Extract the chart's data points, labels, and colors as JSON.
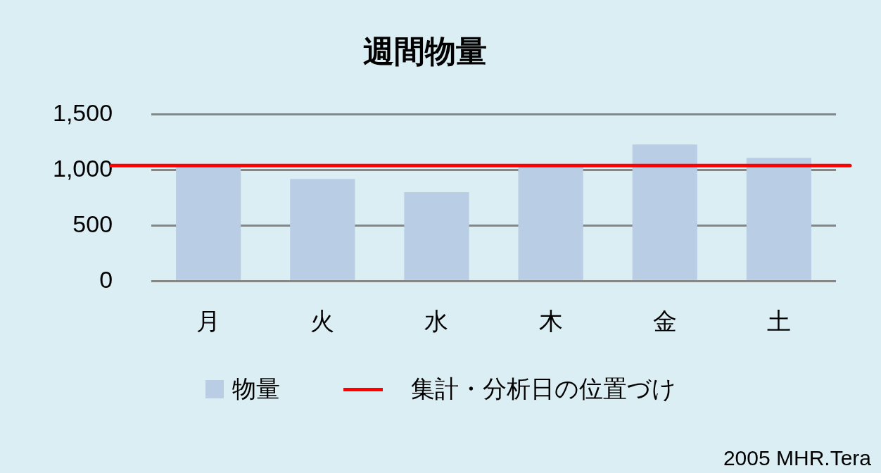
{
  "chart_data": {
    "type": "bar",
    "title": "週間物量",
    "categories": [
      "月",
      "火",
      "水",
      "木",
      "金",
      "土"
    ],
    "series": [
      {
        "name": "物量",
        "color": "#b9cde4",
        "values": [
          1040,
          920,
          800,
          1040,
          1230,
          1110
        ]
      }
    ],
    "ylim": [
      0,
      1500
    ],
    "yticks": [
      0,
      {
        "value": 500,
        "label": "500"
      },
      {
        "value": 1000,
        "label": "1,000"
      },
      {
        "value": 1500,
        "label": "1,500"
      }
    ],
    "grid": "y",
    "legend": "bottom",
    "ref_lines": [
      {
        "axis": "y",
        "value": 1040,
        "label": "集計・分析日の位置づけ",
        "color": "#ff0000"
      }
    ],
    "annotations": [
      "2005  MHR.Tera"
    ]
  }
}
